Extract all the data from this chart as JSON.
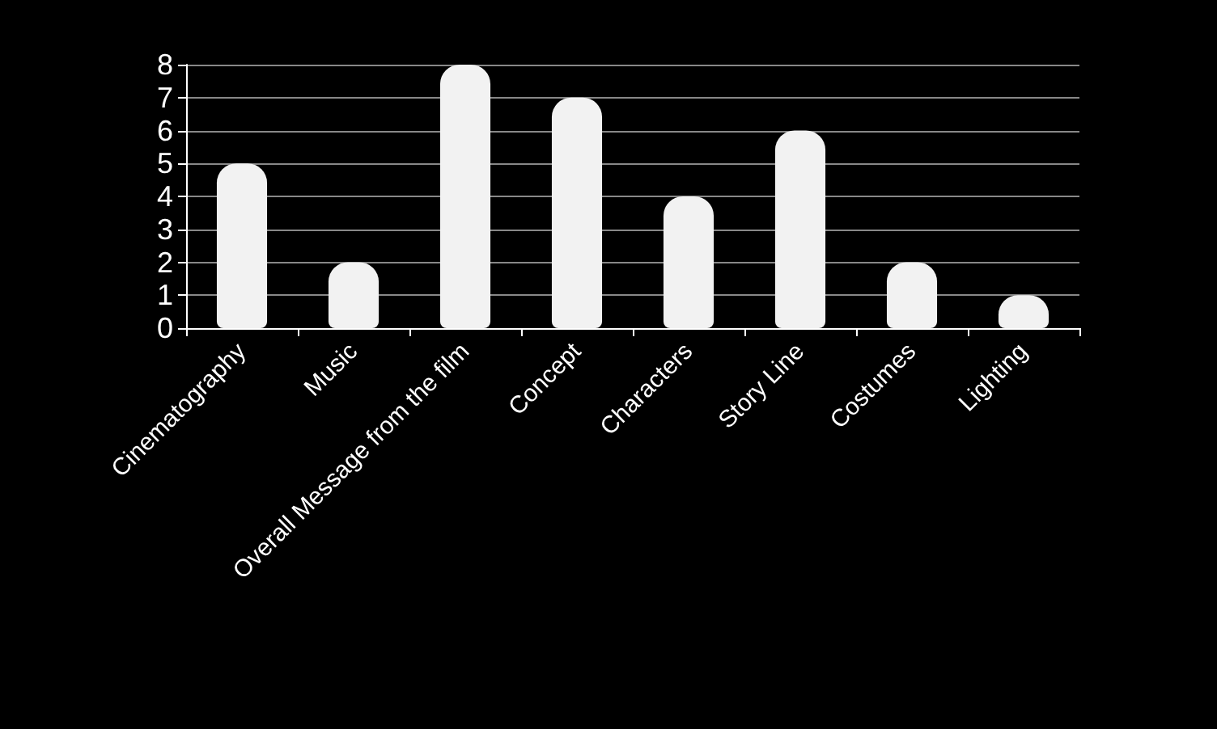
{
  "chart_data": {
    "type": "bar",
    "categories": [
      "Cinematography",
      "Music",
      "Overall Message from the film",
      "Concept",
      "Characters",
      "Story Line",
      "Costumes",
      "Lighting"
    ],
    "values": [
      5,
      2,
      8,
      7,
      4,
      6,
      2,
      1
    ],
    "color": "#f2f2f2",
    "ylim": [
      0,
      8
    ],
    "yticks": [
      0,
      1,
      2,
      3,
      4,
      5,
      6,
      7,
      8
    ],
    "grid": "y"
  }
}
